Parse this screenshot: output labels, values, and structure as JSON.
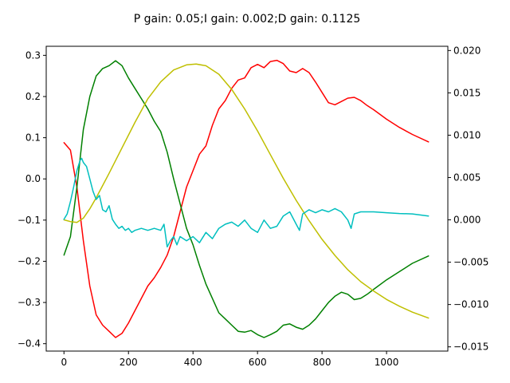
{
  "chart_data": {
    "type": "line",
    "title": "P gain: 0.05;I gain: 0.002;D gain: 0.1125",
    "xlabel": "",
    "ylabel": "",
    "xlim": [
      -55,
      1190
    ],
    "ylim_left": [
      -0.418,
      0.322
    ],
    "ylim_right": [
      -0.0155,
      0.0205
    ],
    "x_ticks": [
      0,
      200,
      400,
      600,
      800,
      1000
    ],
    "y_ticks_left": [
      -0.4,
      -0.3,
      -0.2,
      -0.1,
      0.0,
      0.1,
      0.2,
      0.3
    ],
    "y_ticks_left_labels": [
      "−0.4",
      "−0.3",
      "−0.2",
      "−0.1",
      "0.0",
      "0.1",
      "0.2",
      "0.3"
    ],
    "y_ticks_right": [
      -0.015,
      -0.01,
      -0.005,
      0.0,
      0.005,
      0.01,
      0.015,
      0.02
    ],
    "y_ticks_right_labels": [
      "−0.015",
      "−0.010",
      "−0.005",
      "0.000",
      "0.005",
      "0.010",
      "0.015",
      "0.020"
    ],
    "grid": false,
    "series": [
      {
        "name": "red",
        "axis": "left",
        "color": "#ff0000",
        "points": [
          [
            0,
            0.088
          ],
          [
            20,
            0.07
          ],
          [
            40,
            -0.02
          ],
          [
            60,
            -0.15
          ],
          [
            80,
            -0.26
          ],
          [
            100,
            -0.33
          ],
          [
            120,
            -0.355
          ],
          [
            140,
            -0.37
          ],
          [
            160,
            -0.385
          ],
          [
            180,
            -0.375
          ],
          [
            200,
            -0.35
          ],
          [
            220,
            -0.32
          ],
          [
            240,
            -0.29
          ],
          [
            260,
            -0.26
          ],
          [
            280,
            -0.24
          ],
          [
            300,
            -0.215
          ],
          [
            320,
            -0.185
          ],
          [
            340,
            -0.14
          ],
          [
            360,
            -0.08
          ],
          [
            380,
            -0.02
          ],
          [
            400,
            0.02
          ],
          [
            420,
            0.06
          ],
          [
            440,
            0.08
          ],
          [
            460,
            0.13
          ],
          [
            480,
            0.17
          ],
          [
            500,
            0.19
          ],
          [
            520,
            0.22
          ],
          [
            540,
            0.24
          ],
          [
            560,
            0.245
          ],
          [
            580,
            0.27
          ],
          [
            600,
            0.278
          ],
          [
            620,
            0.27
          ],
          [
            640,
            0.285
          ],
          [
            660,
            0.288
          ],
          [
            680,
            0.28
          ],
          [
            700,
            0.262
          ],
          [
            720,
            0.258
          ],
          [
            740,
            0.268
          ],
          [
            760,
            0.258
          ],
          [
            780,
            0.235
          ],
          [
            800,
            0.21
          ],
          [
            820,
            0.185
          ],
          [
            840,
            0.18
          ],
          [
            860,
            0.188
          ],
          [
            880,
            0.196
          ],
          [
            900,
            0.198
          ],
          [
            920,
            0.19
          ],
          [
            940,
            0.178
          ],
          [
            960,
            0.168
          ],
          [
            1000,
            0.145
          ],
          [
            1040,
            0.125
          ],
          [
            1080,
            0.108
          ],
          [
            1130,
            0.09
          ]
        ]
      },
      {
        "name": "green",
        "axis": "left",
        "color": "#008000",
        "points": [
          [
            0,
            -0.185
          ],
          [
            20,
            -0.14
          ],
          [
            40,
            -0.02
          ],
          [
            60,
            0.12
          ],
          [
            80,
            0.2
          ],
          [
            100,
            0.25
          ],
          [
            120,
            0.268
          ],
          [
            140,
            0.275
          ],
          [
            160,
            0.287
          ],
          [
            180,
            0.275
          ],
          [
            200,
            0.245
          ],
          [
            220,
            0.22
          ],
          [
            240,
            0.195
          ],
          [
            260,
            0.17
          ],
          [
            280,
            0.14
          ],
          [
            300,
            0.115
          ],
          [
            320,
            0.065
          ],
          [
            340,
            0.0
          ],
          [
            360,
            -0.06
          ],
          [
            380,
            -0.12
          ],
          [
            400,
            -0.16
          ],
          [
            420,
            -0.21
          ],
          [
            440,
            -0.255
          ],
          [
            460,
            -0.29
          ],
          [
            480,
            -0.325
          ],
          [
            500,
            -0.34
          ],
          [
            520,
            -0.355
          ],
          [
            540,
            -0.37
          ],
          [
            560,
            -0.372
          ],
          [
            580,
            -0.368
          ],
          [
            600,
            -0.378
          ],
          [
            620,
            -0.385
          ],
          [
            640,
            -0.378
          ],
          [
            660,
            -0.37
          ],
          [
            680,
            -0.355
          ],
          [
            700,
            -0.352
          ],
          [
            720,
            -0.36
          ],
          [
            740,
            -0.365
          ],
          [
            760,
            -0.355
          ],
          [
            780,
            -0.34
          ],
          [
            800,
            -0.32
          ],
          [
            820,
            -0.3
          ],
          [
            840,
            -0.285
          ],
          [
            860,
            -0.275
          ],
          [
            880,
            -0.28
          ],
          [
            900,
            -0.293
          ],
          [
            920,
            -0.29
          ],
          [
            940,
            -0.28
          ],
          [
            960,
            -0.268
          ],
          [
            1000,
            -0.245
          ],
          [
            1040,
            -0.225
          ],
          [
            1080,
            -0.205
          ],
          [
            1130,
            -0.187
          ]
        ]
      },
      {
        "name": "yellow",
        "axis": "right",
        "color": "#bfbf00",
        "points": [
          [
            0,
            0.0
          ],
          [
            20,
            -0.0002
          ],
          [
            40,
            -0.0003
          ],
          [
            60,
            0.0002
          ],
          [
            80,
            0.0013
          ],
          [
            100,
            0.0026
          ],
          [
            140,
            0.0055
          ],
          [
            180,
            0.0085
          ],
          [
            220,
            0.0115
          ],
          [
            260,
            0.0143
          ],
          [
            300,
            0.0163
          ],
          [
            340,
            0.0177
          ],
          [
            380,
            0.0183
          ],
          [
            410,
            0.0184
          ],
          [
            440,
            0.0182
          ],
          [
            480,
            0.0172
          ],
          [
            520,
            0.0154
          ],
          [
            560,
            0.0131
          ],
          [
            600,
            0.0105
          ],
          [
            640,
            0.0077
          ],
          [
            680,
            0.0049
          ],
          [
            720,
            0.0023
          ],
          [
            760,
            -0.0001
          ],
          [
            800,
            -0.0023
          ],
          [
            840,
            -0.0042
          ],
          [
            880,
            -0.0059
          ],
          [
            920,
            -0.0073
          ],
          [
            960,
            -0.0084
          ],
          [
            1000,
            -0.0094
          ],
          [
            1040,
            -0.0102
          ],
          [
            1080,
            -0.0109
          ],
          [
            1130,
            -0.0116
          ]
        ]
      },
      {
        "name": "cyan",
        "axis": "left",
        "color": "#00bfbf",
        "points": [
          [
            0,
            -0.098
          ],
          [
            10,
            -0.085
          ],
          [
            20,
            -0.055
          ],
          [
            30,
            -0.02
          ],
          [
            40,
            0.02
          ],
          [
            50,
            0.045
          ],
          [
            55,
            0.05
          ],
          [
            60,
            0.04
          ],
          [
            70,
            0.03
          ],
          [
            80,
            0.0
          ],
          [
            90,
            -0.03
          ],
          [
            100,
            -0.05
          ],
          [
            110,
            -0.04
          ],
          [
            120,
            -0.075
          ],
          [
            130,
            -0.08
          ],
          [
            140,
            -0.065
          ],
          [
            150,
            -0.098
          ],
          [
            160,
            -0.11
          ],
          [
            170,
            -0.12
          ],
          [
            180,
            -0.115
          ],
          [
            190,
            -0.125
          ],
          [
            200,
            -0.12
          ],
          [
            210,
            -0.13
          ],
          [
            220,
            -0.125
          ],
          [
            240,
            -0.12
          ],
          [
            260,
            -0.125
          ],
          [
            280,
            -0.12
          ],
          [
            300,
            -0.125
          ],
          [
            310,
            -0.11
          ],
          [
            320,
            -0.165
          ],
          [
            330,
            -0.15
          ],
          [
            340,
            -0.14
          ],
          [
            350,
            -0.16
          ],
          [
            360,
            -0.14
          ],
          [
            380,
            -0.15
          ],
          [
            400,
            -0.14
          ],
          [
            420,
            -0.155
          ],
          [
            440,
            -0.13
          ],
          [
            460,
            -0.145
          ],
          [
            480,
            -0.12
          ],
          [
            500,
            -0.11
          ],
          [
            520,
            -0.105
          ],
          [
            540,
            -0.115
          ],
          [
            560,
            -0.1
          ],
          [
            580,
            -0.12
          ],
          [
            600,
            -0.13
          ],
          [
            620,
            -0.1
          ],
          [
            640,
            -0.12
          ],
          [
            660,
            -0.115
          ],
          [
            680,
            -0.09
          ],
          [
            700,
            -0.08
          ],
          [
            720,
            -0.11
          ],
          [
            730,
            -0.125
          ],
          [
            740,
            -0.085
          ],
          [
            760,
            -0.075
          ],
          [
            780,
            -0.082
          ],
          [
            800,
            -0.075
          ],
          [
            820,
            -0.08
          ],
          [
            840,
            -0.072
          ],
          [
            860,
            -0.08
          ],
          [
            880,
            -0.1
          ],
          [
            890,
            -0.12
          ],
          [
            900,
            -0.085
          ],
          [
            920,
            -0.08
          ],
          [
            960,
            -0.08
          ],
          [
            1000,
            -0.082
          ],
          [
            1040,
            -0.084
          ],
          [
            1080,
            -0.085
          ],
          [
            1130,
            -0.09
          ]
        ]
      }
    ]
  }
}
